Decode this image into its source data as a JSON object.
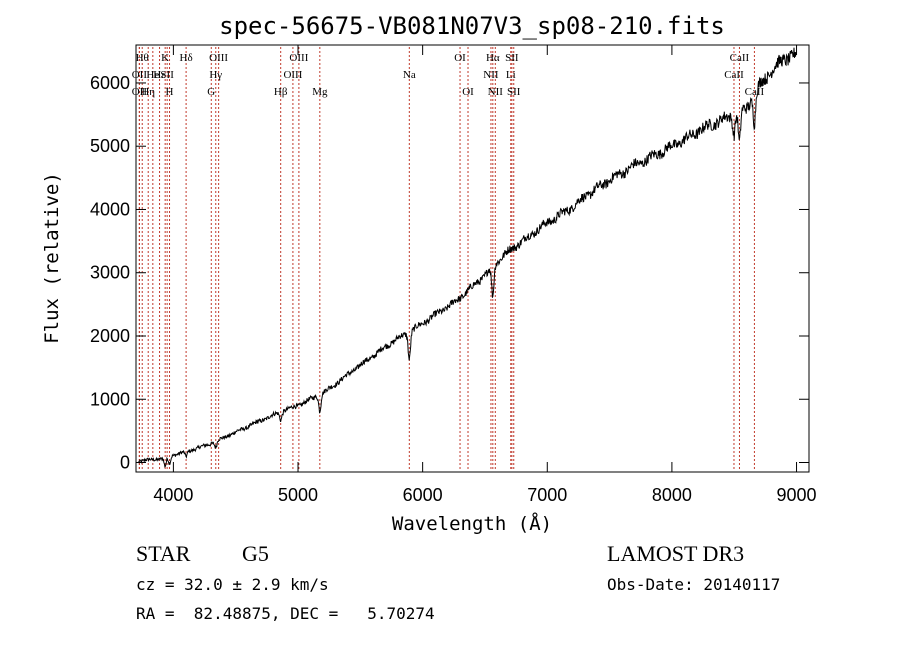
{
  "chart_data": {
    "type": "line",
    "title": "spec-56675-VB081N07V3_sp08-210.fits",
    "xlabel": "Wavelength (Å)",
    "ylabel": "Flux (relative)",
    "xlim": [
      3700,
      9100
    ],
    "ylim": [
      -150,
      6600
    ],
    "x_ticks": [
      4000,
      5000,
      6000,
      7000,
      8000,
      9000
    ],
    "y_ticks": [
      0,
      1000,
      2000,
      3000,
      4000,
      5000,
      6000
    ],
    "grid": false,
    "line_color": "#000000",
    "marker_color": "#c0392b",
    "spectrum": {
      "name": "flux",
      "x": [
        3720,
        3800,
        3900,
        4000,
        4100,
        4200,
        4300,
        4400,
        4500,
        4600,
        4700,
        4800,
        4900,
        5000,
        5100,
        5200,
        5300,
        5400,
        5500,
        5600,
        5700,
        5800,
        5900,
        6000,
        6100,
        6200,
        6300,
        6400,
        6500,
        6600,
        6700,
        6800,
        6900,
        7000,
        7100,
        7200,
        7300,
        7400,
        7500,
        7600,
        7700,
        7800,
        7900,
        8000,
        8100,
        8200,
        8300,
        8400,
        8500,
        8600,
        8700,
        8800,
        8900,
        9000
      ],
      "y": [
        20,
        40,
        60,
        120,
        170,
        230,
        300,
        390,
        480,
        570,
        660,
        750,
        830,
        900,
        1000,
        1100,
        1240,
        1390,
        1540,
        1680,
        1830,
        1960,
        2070,
        2200,
        2330,
        2460,
        2600,
        2780,
        2960,
        3180,
        3360,
        3500,
        3650,
        3790,
        3910,
        4040,
        4200,
        4330,
        4470,
        4580,
        4700,
        4790,
        4900,
        5000,
        5100,
        5220,
        5330,
        5420,
        5500,
        5600,
        5950,
        6200,
        6380,
        6450
      ]
    },
    "absorption_dips": [
      {
        "x": 3934,
        "depth": 150
      },
      {
        "x": 3969,
        "depth": 120
      },
      {
        "x": 4102,
        "depth": 80
      },
      {
        "x": 4340,
        "depth": 100
      },
      {
        "x": 4861,
        "depth": 120
      },
      {
        "x": 5175,
        "depth": 250
      },
      {
        "x": 5893,
        "depth": 420
      },
      {
        "x": 6563,
        "depth": 480
      },
      {
        "x": 8498,
        "depth": 300
      },
      {
        "x": 8542,
        "depth": 500
      },
      {
        "x": 8662,
        "depth": 450
      }
    ],
    "spectral_lines": [
      {
        "x": 3750,
        "label": "Hθ",
        "row": 0
      },
      {
        "x": 3727,
        "label": "OII",
        "row": 1
      },
      {
        "x": 3727,
        "label": "OII",
        "row": 2
      },
      {
        "x": 3798,
        "label": "Hη",
        "row": 2
      },
      {
        "x": 3835,
        "label": "He",
        "row": 1
      },
      {
        "x": 3934,
        "label": "K",
        "row": 0
      },
      {
        "x": 3969,
        "label": "H",
        "row": 2
      },
      {
        "x": 3889,
        "label": "Hε",
        "row": 1
      },
      {
        "x": 3950,
        "label": "SII",
        "row": 1
      },
      {
        "x": 4102,
        "label": "Hδ",
        "row": 0
      },
      {
        "x": 4304,
        "label": "G",
        "row": 2
      },
      {
        "x": 4340,
        "label": "Hγ",
        "row": 1
      },
      {
        "x": 4363,
        "label": "OIII",
        "row": 0
      },
      {
        "x": 4861,
        "label": "Hβ",
        "row": 2
      },
      {
        "x": 4959,
        "label": "OIII",
        "row": 1
      },
      {
        "x": 5007,
        "label": "OIII",
        "row": 0
      },
      {
        "x": 5175,
        "label": "Mg",
        "row": 2
      },
      {
        "x": 5893,
        "label": "Na",
        "row": 1
      },
      {
        "x": 6300,
        "label": "OI",
        "row": 0
      },
      {
        "x": 6364,
        "label": "OI",
        "row": 2
      },
      {
        "x": 6548,
        "label": "NII",
        "row": 1
      },
      {
        "x": 6563,
        "label": "Hα",
        "row": 0
      },
      {
        "x": 6583,
        "label": "NII",
        "row": 2
      },
      {
        "x": 6716,
        "label": "SII",
        "row": 0
      },
      {
        "x": 6731,
        "label": "SII",
        "row": 2
      },
      {
        "x": 6707,
        "label": "Li",
        "row": 1
      },
      {
        "x": 8498,
        "label": "CaII",
        "row": 1
      },
      {
        "x": 8542,
        "label": "CaII",
        "row": 0
      },
      {
        "x": 8662,
        "label": "CaII",
        "row": 2
      }
    ]
  },
  "info": {
    "class_label": "STAR",
    "subclass": "G5",
    "survey": "LAMOST DR3",
    "redshift_line": "cz = 32.0 ± 2.9 km/s",
    "obs_date_line": "Obs-Date: 20140117",
    "coords_line": "RA =  82.48875, DEC =   5.70274"
  }
}
